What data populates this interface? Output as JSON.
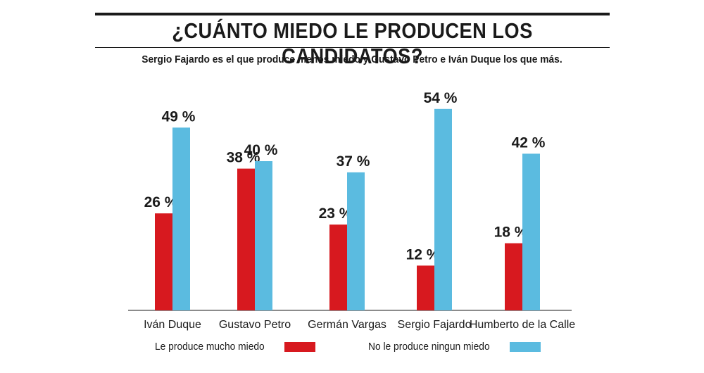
{
  "title": "¿CUÁNTO MIEDO LE PRODUCEN LOS CANDIDATOS?",
  "subtitle": "Sergio Fajardo es el que produce menos miedo y Gustavo Petro e Iván Duque los que más.",
  "chart_data": {
    "type": "bar",
    "categories": [
      "Iván Duque",
      "Gustavo Petro",
      "Germán Vargas",
      "Sergio Fajardo",
      "Humberto de la Calle"
    ],
    "series": [
      {
        "name": "Le produce mucho miedo",
        "color": "#d7191f",
        "values": [
          26,
          38,
          23,
          12,
          18
        ]
      },
      {
        "name": "No le produce ningun miedo",
        "color": "#5bbbe0",
        "values": [
          49,
          40,
          37,
          54,
          42
        ]
      }
    ],
    "value_suffix": " %",
    "ylim": [
      0,
      54
    ],
    "grid": false,
    "legend_position": "bottom"
  }
}
